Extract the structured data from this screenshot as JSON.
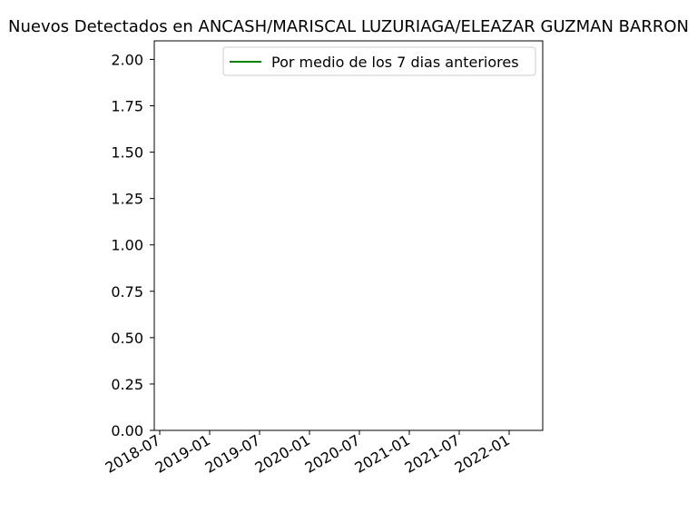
{
  "chart_data": {
    "type": "line",
    "title": "Nuevos Detectados en ANCASH/MARISCAL LUZURIAGA/ELEAZAR GUZMAN BARRON",
    "xlabel": "",
    "ylabel": "",
    "x_ticks": [
      "2018-07",
      "2019-01",
      "2019-07",
      "2020-01",
      "2020-07",
      "2021-01",
      "2021-07",
      "2022-01"
    ],
    "y_ticks": [
      "0.00",
      "0.25",
      "0.50",
      "0.75",
      "1.00",
      "1.25",
      "1.50",
      "1.75",
      "2.00"
    ],
    "ylim": [
      0,
      2.1
    ],
    "grid": false,
    "legend_position": "top-right",
    "series": [
      {
        "name": "Por medio de los 7 dias anteriores",
        "color": "#008000",
        "x": [],
        "values": []
      }
    ]
  }
}
